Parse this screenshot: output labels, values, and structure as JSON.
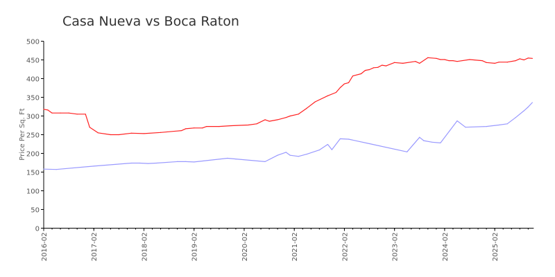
{
  "chart_data": {
    "type": "line",
    "title": "Casa Nueva vs Boca Raton",
    "xlabel": "",
    "ylabel": "Price Per Sq. Ft",
    "ylim": [
      0,
      500
    ],
    "yticks": [
      "0",
      "50",
      "100",
      "150",
      "200",
      "250",
      "300",
      "350",
      "400",
      "450",
      "500"
    ],
    "xlim": [
      "2016-02",
      "2025-11"
    ],
    "xticks": [
      "2016-02",
      "2017-02",
      "2018-02",
      "2019-02",
      "2020-02",
      "2021-02",
      "2022-02",
      "2023-02",
      "2024-02",
      "2025-02"
    ],
    "grid": false,
    "legend": "none",
    "series": [
      {
        "color": "#ff2020",
        "points": [
          [
            "2016-02",
            318
          ],
          [
            "2016-03",
            316
          ],
          [
            "2016-04",
            308
          ],
          [
            "2016-06",
            308
          ],
          [
            "2016-08",
            308
          ],
          [
            "2016-10",
            305
          ],
          [
            "2016-12",
            305
          ],
          [
            "2017-01",
            270
          ],
          [
            "2017-03",
            255
          ],
          [
            "2017-06",
            250
          ],
          [
            "2017-08",
            250
          ],
          [
            "2017-11",
            254
          ],
          [
            "2018-02",
            253
          ],
          [
            "2018-06",
            256
          ],
          [
            "2018-11",
            261
          ],
          [
            "2018-12",
            266
          ],
          [
            "2019-02",
            268
          ],
          [
            "2019-04",
            268
          ],
          [
            "2019-05",
            272
          ],
          [
            "2019-08",
            272
          ],
          [
            "2019-11",
            274
          ],
          [
            "2020-03",
            276
          ],
          [
            "2020-05",
            279
          ],
          [
            "2020-07",
            290
          ],
          [
            "2020-08",
            286
          ],
          [
            "2020-10",
            290
          ],
          [
            "2020-12",
            296
          ],
          [
            "2021-01",
            300
          ],
          [
            "2021-03",
            305
          ],
          [
            "2021-05",
            321
          ],
          [
            "2021-07",
            338
          ],
          [
            "2021-10",
            354
          ],
          [
            "2021-12",
            363
          ],
          [
            "2022-01",
            376
          ],
          [
            "2022-02",
            386
          ],
          [
            "2022-03",
            389
          ],
          [
            "2022-04",
            407
          ],
          [
            "2022-06",
            413
          ],
          [
            "2022-07",
            422
          ],
          [
            "2022-08",
            424
          ],
          [
            "2022-09",
            429
          ],
          [
            "2022-10",
            430
          ],
          [
            "2022-11",
            436
          ],
          [
            "2022-12",
            434
          ],
          [
            "2023-02",
            443
          ],
          [
            "2023-04",
            441
          ],
          [
            "2023-07",
            446
          ],
          [
            "2023-08",
            441
          ],
          [
            "2023-10",
            456
          ],
          [
            "2023-12",
            454
          ],
          [
            "2024-01",
            451
          ],
          [
            "2024-02",
            451
          ],
          [
            "2024-03",
            448
          ],
          [
            "2024-04",
            448
          ],
          [
            "2024-05",
            446
          ],
          [
            "2024-08",
            451
          ],
          [
            "2024-11",
            448
          ],
          [
            "2024-12",
            443
          ],
          [
            "2025-02",
            441
          ],
          [
            "2025-03",
            444
          ],
          [
            "2025-05",
            444
          ],
          [
            "2025-07",
            448
          ],
          [
            "2025-08",
            453
          ],
          [
            "2025-09",
            450
          ],
          [
            "2025-10",
            455
          ],
          [
            "2025-11",
            454
          ]
        ]
      },
      {
        "color": "#9999ff",
        "points": [
          [
            "2016-02",
            158
          ],
          [
            "2016-05",
            157
          ],
          [
            "2017-02",
            166
          ],
          [
            "2017-11",
            174
          ],
          [
            "2018-01",
            174
          ],
          [
            "2018-03",
            173
          ],
          [
            "2018-05",
            174
          ],
          [
            "2018-10",
            178
          ],
          [
            "2018-12",
            178
          ],
          [
            "2019-02",
            177
          ],
          [
            "2019-10",
            187
          ],
          [
            "2019-12",
            185
          ],
          [
            "2020-07",
            178
          ],
          [
            "2020-10",
            195
          ],
          [
            "2020-12",
            203
          ],
          [
            "2021-01",
            195
          ],
          [
            "2021-03",
            192
          ],
          [
            "2021-05",
            198
          ],
          [
            "2021-08",
            209
          ],
          [
            "2021-10",
            224
          ],
          [
            "2021-11",
            210
          ],
          [
            "2022-01",
            239
          ],
          [
            "2022-03",
            238
          ],
          [
            "2022-08",
            226
          ],
          [
            "2023-05",
            204
          ],
          [
            "2023-08",
            243
          ],
          [
            "2023-09",
            234
          ],
          [
            "2023-11",
            230
          ],
          [
            "2024-01",
            228
          ],
          [
            "2024-05",
            287
          ],
          [
            "2024-07",
            270
          ],
          [
            "2024-12",
            272
          ],
          [
            "2025-03",
            276
          ],
          [
            "2025-05",
            279
          ],
          [
            "2025-07",
            296
          ],
          [
            "2025-09",
            314
          ],
          [
            "2025-10",
            324
          ],
          [
            "2025-11",
            336
          ]
        ]
      }
    ]
  }
}
